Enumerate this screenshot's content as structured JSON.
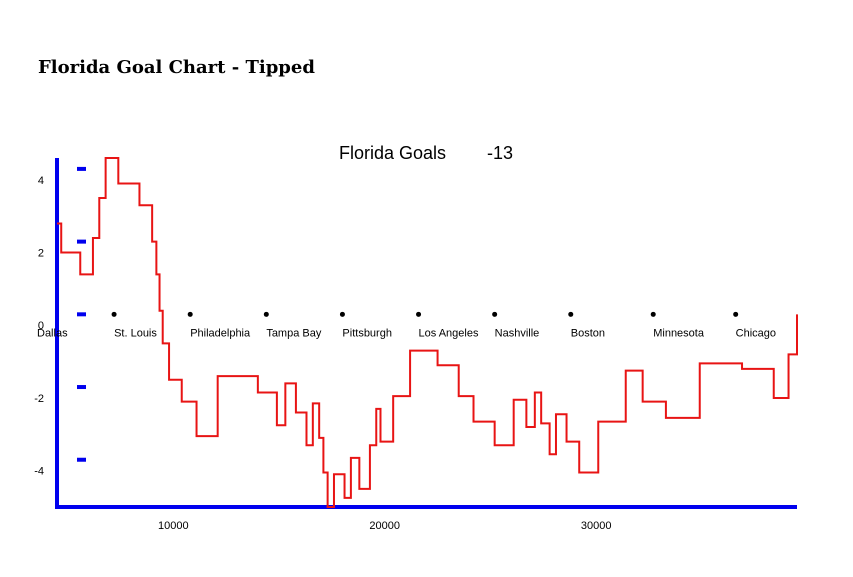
{
  "page": {
    "title": "Florida Goal Chart - Tipped"
  },
  "chart_data": {
    "type": "line",
    "step": true,
    "title": "Florida Goals",
    "title_value": "-13",
    "xlabel": "",
    "ylabel": "",
    "xlim": [
      4500,
      39500
    ],
    "ylim": [
      -5,
      4.6
    ],
    "x_ticks": [
      10000,
      20000,
      30000
    ],
    "y_ticks": [
      4,
      2,
      0,
      -2,
      -4
    ],
    "y_tick_marks": [
      4.3,
      2.3,
      0.3,
      -1.7,
      -3.7
    ],
    "grid": false,
    "legend": "none",
    "colors": {
      "line": "#e81414",
      "axis": "#0000ee",
      "text": "#000000"
    },
    "baseline_markers": [
      {
        "x": 4500,
        "label": "Dallas"
      },
      {
        "x": 7200,
        "label": "St. Louis"
      },
      {
        "x": 10800,
        "label": "Philadelphia"
      },
      {
        "x": 14400,
        "label": "Tampa Bay"
      },
      {
        "x": 18000,
        "label": "Pittsburgh"
      },
      {
        "x": 21600,
        "label": "Los Angeles"
      },
      {
        "x": 25200,
        "label": "Nashville"
      },
      {
        "x": 28800,
        "label": "Boston"
      },
      {
        "x": 32700,
        "label": "Minnesota"
      },
      {
        "x": 36600,
        "label": "Chicago"
      }
    ],
    "series": [
      {
        "points": [
          [
            4500,
            2.8
          ],
          [
            4700,
            2.0
          ],
          [
            5600,
            1.4
          ],
          [
            6200,
            2.4
          ],
          [
            6500,
            3.5
          ],
          [
            6800,
            4.6
          ],
          [
            7400,
            3.9
          ],
          [
            8400,
            3.3
          ],
          [
            9000,
            2.3
          ],
          [
            9200,
            1.4
          ],
          [
            9350,
            0.4
          ],
          [
            9500,
            -0.5
          ],
          [
            9800,
            -1.5
          ],
          [
            10400,
            -2.1
          ],
          [
            11100,
            -3.05
          ],
          [
            12100,
            -1.4
          ],
          [
            14000,
            -1.85
          ],
          [
            14900,
            -2.75
          ],
          [
            15300,
            -1.6
          ],
          [
            15800,
            -2.4
          ],
          [
            16300,
            -3.3
          ],
          [
            16600,
            -2.15
          ],
          [
            16900,
            -3.1
          ],
          [
            17100,
            -4.05
          ],
          [
            17300,
            -5.0
          ],
          [
            17600,
            -4.1
          ],
          [
            18100,
            -4.75
          ],
          [
            18400,
            -3.65
          ],
          [
            18800,
            -4.5
          ],
          [
            19300,
            -3.3
          ],
          [
            19600,
            -2.3
          ],
          [
            19800,
            -3.2
          ],
          [
            20400,
            -1.95
          ],
          [
            21200,
            -0.7
          ],
          [
            22500,
            -1.1
          ],
          [
            23500,
            -1.95
          ],
          [
            24200,
            -2.65
          ],
          [
            25200,
            -3.3
          ],
          [
            26100,
            -2.05
          ],
          [
            26700,
            -2.8
          ],
          [
            27100,
            -1.85
          ],
          [
            27400,
            -2.7
          ],
          [
            27800,
            -3.55
          ],
          [
            28100,
            -2.45
          ],
          [
            28600,
            -3.2
          ],
          [
            29200,
            -4.05
          ],
          [
            30100,
            -2.65
          ],
          [
            31400,
            -1.25
          ],
          [
            32200,
            -2.1
          ],
          [
            33300,
            -2.55
          ],
          [
            34900,
            -1.05
          ],
          [
            36900,
            -1.2
          ],
          [
            38400,
            -2.0
          ],
          [
            39100,
            -0.8
          ],
          [
            39500,
            0.3
          ]
        ]
      }
    ]
  }
}
